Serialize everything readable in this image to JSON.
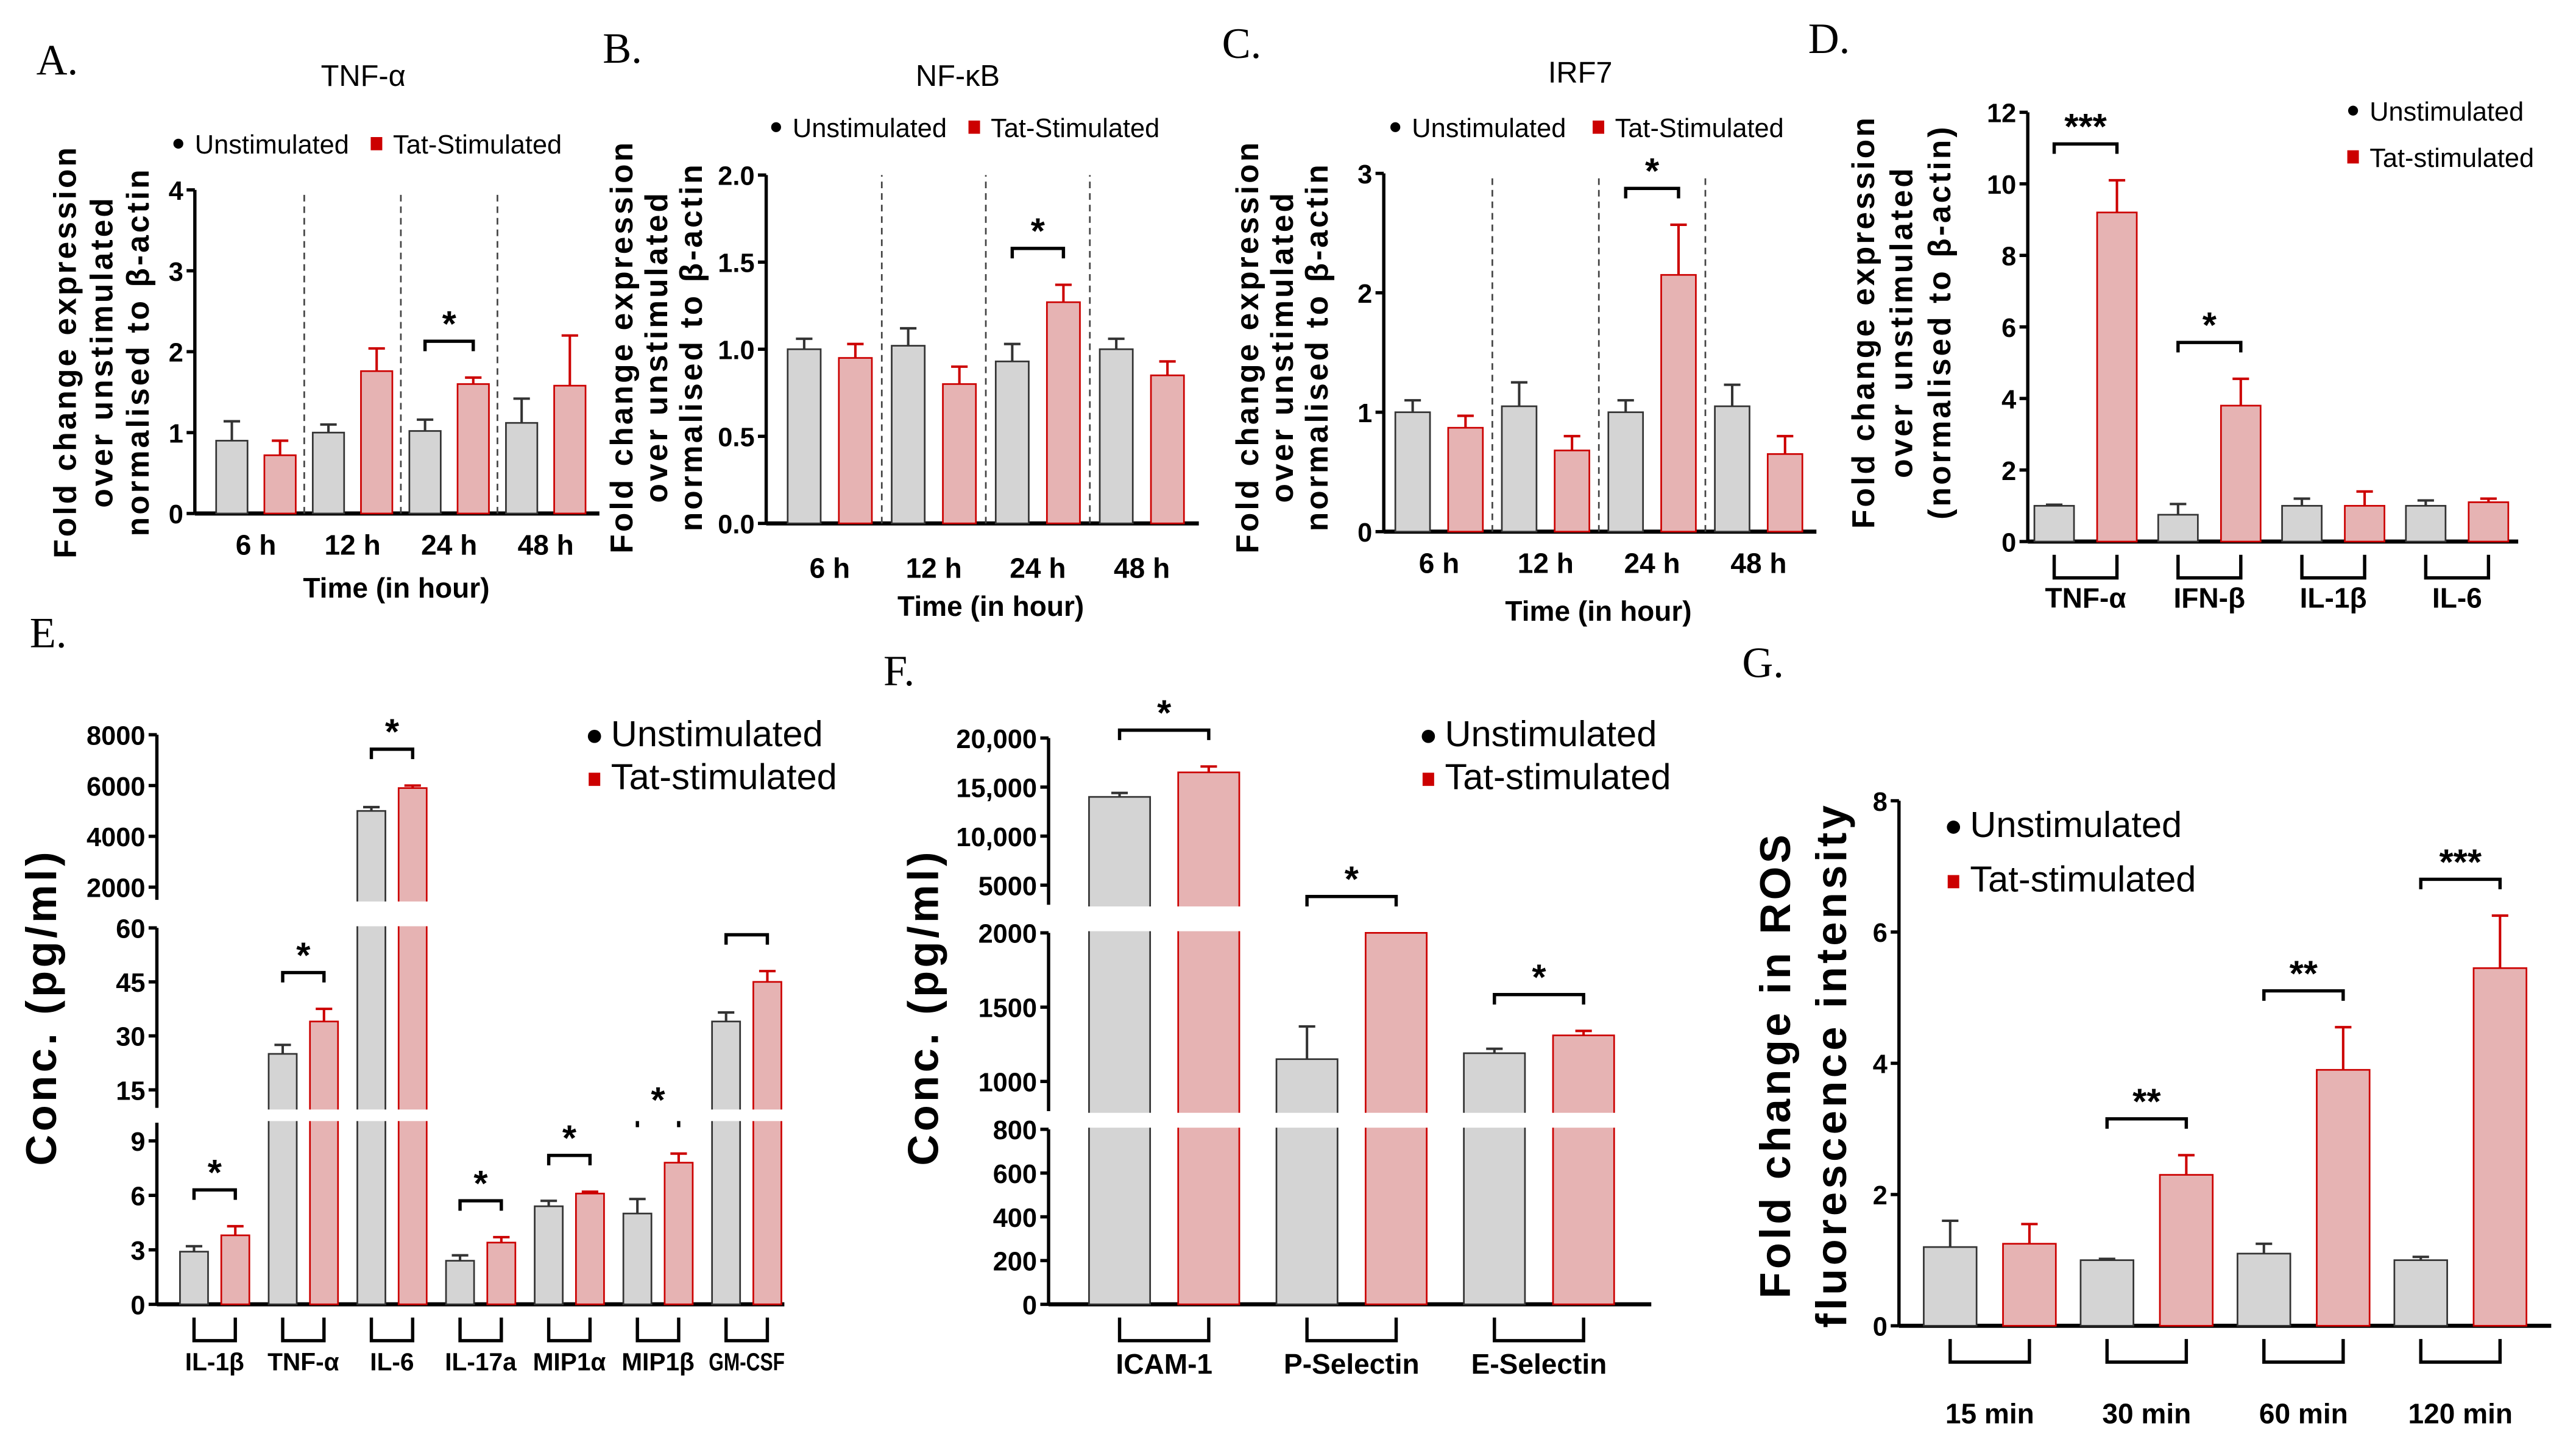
{
  "colors": {
    "unstim_fill": "#d4d4d4",
    "unstim_stroke": "#333333",
    "tat_fill": "#e6b3b3",
    "tat_stroke": "#cc0000",
    "unstim_marker": "#000000",
    "tat_marker": "#cc0000"
  },
  "chart_data": [
    {
      "id": "A",
      "panel_label": "A.",
      "type": "bar",
      "title": "TNF-α",
      "ylabel": [
        "Fold change expression",
        "over unstimulated",
        "normalised to β-actin"
      ],
      "xlabel": "Time (in hour)",
      "legend": [
        "Unstimulated",
        "Tat-Stimulated"
      ],
      "categories": [
        "6 h",
        "12 h",
        "24 h",
        "48 h"
      ],
      "ylim": [
        0,
        4
      ],
      "yticks": [
        "0",
        "1",
        "2",
        "3",
        "4"
      ],
      "ytick_values": [
        0,
        1,
        2,
        3,
        4
      ],
      "series": [
        {
          "name": "Unstimulated",
          "values": [
            0.9,
            1.0,
            1.02,
            1.12
          ],
          "sem": [
            0.24,
            0.1,
            0.14,
            0.3
          ]
        },
        {
          "name": "Tat-Stimulated",
          "values": [
            0.72,
            1.76,
            1.6,
            1.58
          ],
          "sem": [
            0.18,
            0.28,
            0.08,
            0.62
          ]
        }
      ],
      "significance": [
        "",
        "",
        "*",
        ""
      ],
      "dividers": true
    },
    {
      "id": "B",
      "panel_label": "B.",
      "type": "bar",
      "title": "NF-κB",
      "ylabel": [
        "Fold change expression",
        "over unstimulated",
        "normalised to β-actin"
      ],
      "xlabel": "Time (in hour)",
      "legend": [
        "Unstimulated",
        "Tat-Stimulated"
      ],
      "categories": [
        "6 h",
        "12 h",
        "24 h",
        "48 h"
      ],
      "ylim": [
        0,
        2
      ],
      "yticks": [
        "0.0",
        "0.5",
        "1.0",
        "1.5",
        "2.0"
      ],
      "ytick_values": [
        0,
        0.5,
        1,
        1.5,
        2
      ],
      "series": [
        {
          "name": "Unstimulated",
          "values": [
            1.0,
            1.02,
            0.93,
            1.0
          ],
          "sem": [
            0.06,
            0.1,
            0.1,
            0.06
          ]
        },
        {
          "name": "Tat-Stimulated",
          "values": [
            0.95,
            0.8,
            1.27,
            0.85
          ],
          "sem": [
            0.08,
            0.1,
            0.1,
            0.08
          ]
        }
      ],
      "significance": [
        "",
        "",
        "*",
        ""
      ],
      "dividers": true
    },
    {
      "id": "C",
      "panel_label": "C.",
      "type": "bar",
      "title": "IRF7",
      "ylabel": [
        "Fold change expression",
        "over unstimulated",
        "normalised to β-actin"
      ],
      "xlabel": "Time (in hour)",
      "legend": [
        "Unstimulated",
        "Tat-Stimulated"
      ],
      "categories": [
        "6 h",
        "12 h",
        "24 h",
        "48 h"
      ],
      "ylim": [
        0,
        3
      ],
      "yticks": [
        "0",
        "1",
        "2",
        "3"
      ],
      "ytick_values": [
        0,
        1,
        2,
        3
      ],
      "series": [
        {
          "name": "Unstimulated",
          "values": [
            1.0,
            1.05,
            1.0,
            1.05
          ],
          "sem": [
            0.1,
            0.2,
            0.1,
            0.18
          ]
        },
        {
          "name": "Tat-Stimulated",
          "values": [
            0.87,
            0.68,
            2.15,
            0.65
          ],
          "sem": [
            0.1,
            0.12,
            0.42,
            0.15
          ]
        }
      ],
      "significance": [
        "",
        "",
        "*",
        ""
      ],
      "dividers": true
    },
    {
      "id": "D",
      "panel_label": "D.",
      "type": "bar",
      "title": "",
      "ylabel": [
        "Fold change expression",
        "over unstimulated",
        "(normalised to β-actin)"
      ],
      "xlabel": "",
      "legend": [
        "Unstimulated",
        "Tat-stimulated"
      ],
      "categories": [
        "TNF-α",
        "IFN-β",
        "IL-1β",
        "IL-6"
      ],
      "ylim": [
        0,
        12
      ],
      "yticks": [
        "0",
        "2",
        "4",
        "6",
        "8",
        "10",
        "12"
      ],
      "ytick_values": [
        0,
        2,
        4,
        6,
        8,
        10,
        12
      ],
      "series": [
        {
          "name": "Unstimulated",
          "values": [
            1.0,
            0.75,
            1.0,
            1.0
          ],
          "sem": [
            0.03,
            0.3,
            0.2,
            0.15
          ]
        },
        {
          "name": "Tat-stimulated",
          "values": [
            9.2,
            3.8,
            1.0,
            1.1
          ],
          "sem": [
            0.9,
            0.75,
            0.4,
            0.1
          ]
        }
      ],
      "significance": [
        "***",
        "*",
        "",
        ""
      ]
    },
    {
      "id": "E",
      "panel_label": "E.",
      "type": "bar",
      "title": "",
      "ylabel": [
        "Conc. (pg/ml)"
      ],
      "xlabel": "",
      "legend": [
        "Unstimulated",
        "Tat-stimulated"
      ],
      "categories": [
        "IL-1β",
        "TNF-α",
        "IL-6",
        "IL-17a",
        "MIP1α",
        "MIP1β",
        "GM-CSF"
      ],
      "y_segments": [
        {
          "range": [
            0,
            10
          ],
          "ticks": [
            0,
            3,
            6,
            9
          ],
          "tick_labels": [
            "0",
            "3",
            "6",
            "9"
          ]
        },
        {
          "range": [
            10,
            60
          ],
          "ticks": [
            15,
            30,
            45,
            60
          ],
          "tick_labels": [
            "15",
            "30",
            "45",
            "60"
          ]
        },
        {
          "range": [
            1500,
            8000
          ],
          "ticks": [
            2000,
            4000,
            6000,
            8000
          ],
          "tick_labels": [
            "2000",
            "4000",
            "6000",
            "8000"
          ]
        }
      ],
      "series": [
        {
          "name": "Unstimulated",
          "values": [
            2.9,
            25,
            5000,
            2.4,
            5.4,
            5.0,
            34
          ],
          "sem": [
            0.3,
            2.5,
            150,
            0.3,
            0.3,
            0.8,
            2.5
          ]
        },
        {
          "name": "Tat-stimulated",
          "values": [
            3.8,
            34,
            5900,
            3.4,
            6.1,
            7.8,
            45
          ],
          "sem": [
            0.5,
            3.5,
            100,
            0.3,
            0.1,
            0.5,
            3
          ]
        }
      ],
      "significance": [
        "*",
        "*",
        "*",
        "*",
        "*",
        "*",
        "*"
      ]
    },
    {
      "id": "F",
      "panel_label": "F.",
      "type": "bar",
      "title": "",
      "ylabel": [
        "Conc. (pg/ml)"
      ],
      "xlabel": "",
      "legend": [
        "Unstimulated",
        "Tat-stimulated"
      ],
      "categories": [
        "ICAM-1",
        "P-Selectin",
        "E-Selectin"
      ],
      "y_segments": [
        {
          "range": [
            0,
            800
          ],
          "ticks": [
            0,
            200,
            400,
            600,
            800
          ],
          "tick_labels": [
            "0",
            "200",
            "400",
            "600",
            "800"
          ]
        },
        {
          "range": [
            800,
            2000
          ],
          "ticks": [
            1000,
            1500,
            2000
          ],
          "tick_labels": [
            "1000",
            "1500",
            "2000"
          ]
        },
        {
          "range": [
            3000,
            20000
          ],
          "ticks": [
            5000,
            10000,
            15000,
            20000
          ],
          "tick_labels": [
            "5000",
            "10,000",
            "15,000",
            "20,000"
          ]
        }
      ],
      "series": [
        {
          "name": "Unstimulated",
          "values": [
            14000,
            1150,
            1190
          ],
          "sem": [
            400,
            220,
            30
          ]
        },
        {
          "name": "Tat-stimulated",
          "values": [
            16500,
            2500,
            1310
          ],
          "sem": [
            600,
            0,
            30
          ]
        }
      ],
      "significance": [
        "*",
        "*",
        "*"
      ]
    },
    {
      "id": "G",
      "panel_label": "G.",
      "type": "bar",
      "title": "",
      "ylabel": [
        "Fold change in ROS",
        "fluorescence intensity"
      ],
      "xlabel": "",
      "legend": [
        "Unstimulated",
        "Tat-stimulated"
      ],
      "categories": [
        "15 min",
        "30 min",
        "60 min",
        "120 min"
      ],
      "ylim": [
        0,
        8
      ],
      "yticks": [
        "0",
        "2",
        "4",
        "6",
        "8"
      ],
      "ytick_values": [
        0,
        2,
        4,
        6,
        8
      ],
      "series": [
        {
          "name": "Unstimulated",
          "values": [
            1.2,
            1.0,
            1.1,
            1.0
          ],
          "sem": [
            0.4,
            0.02,
            0.15,
            0.05
          ]
        },
        {
          "name": "Tat-stimulated",
          "values": [
            1.25,
            2.3,
            3.9,
            5.45
          ],
          "sem": [
            0.3,
            0.3,
            0.65,
            0.8
          ]
        }
      ],
      "significance": [
        "",
        "**",
        "**",
        "***"
      ]
    }
  ]
}
